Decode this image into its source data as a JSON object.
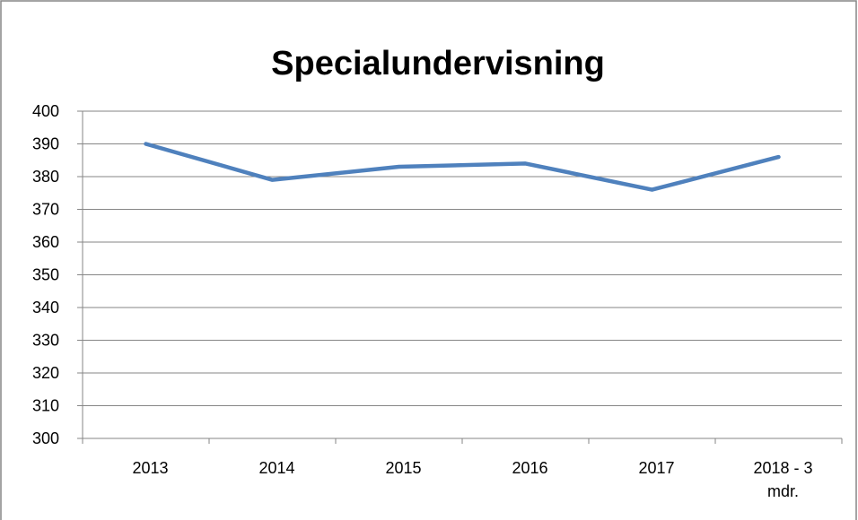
{
  "chart_data": {
    "type": "line",
    "title": "Specialundervisning",
    "categories": [
      "2013",
      "2014",
      "2015",
      "2016",
      "2017",
      "2018 - 3 mdr."
    ],
    "values": [
      390,
      379,
      383,
      384,
      376,
      386
    ],
    "color": "#4f81bd",
    "ylim": [
      300,
      400
    ],
    "yticks": [
      300,
      310,
      320,
      330,
      340,
      350,
      360,
      370,
      380,
      390,
      400
    ],
    "grid": true
  }
}
